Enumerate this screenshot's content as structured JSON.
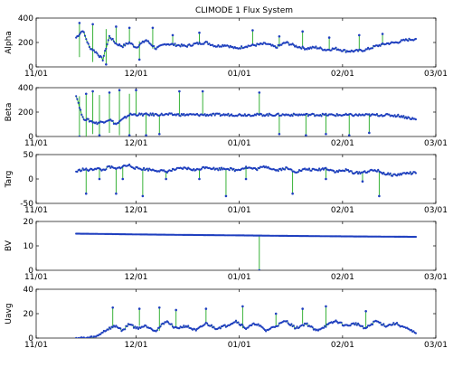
{
  "figure": {
    "title": "CLIMODE 1 Flux System"
  },
  "chart_data": [
    {
      "type": "line",
      "ylabel": "Alpha",
      "xlim": [
        "11/01",
        "03/01"
      ],
      "xticks": [
        "11/01",
        "12/01",
        "01/01",
        "02/01",
        "03/01"
      ],
      "ylim": [
        0,
        400
      ],
      "yticks": [
        0,
        200,
        400
      ],
      "x_start": "11/13",
      "x_end": "02/23",
      "series": [
        {
          "color": "#22aa22",
          "values": []
        },
        {
          "color": "#1f3fbf",
          "values": []
        }
      ],
      "points": [
        [
          "11/13",
          240
        ],
        [
          "11/15",
          300
        ],
        [
          "11/17",
          160
        ],
        [
          "11/19",
          120
        ],
        [
          "11/21",
          60
        ],
        [
          "11/23",
          250
        ],
        [
          "11/25",
          190
        ],
        [
          "11/27",
          170
        ],
        [
          "11/29",
          200
        ],
        [
          "12/01",
          160
        ],
        [
          "12/04",
          220
        ],
        [
          "12/07",
          150
        ],
        [
          "12/10",
          190
        ],
        [
          "12/13",
          180
        ],
        [
          "12/16",
          170
        ],
        [
          "12/19",
          190
        ],
        [
          "12/22",
          200
        ],
        [
          "12/25",
          170
        ],
        [
          "12/28",
          180
        ],
        [
          "12/31",
          150
        ],
        [
          "01/03",
          170
        ],
        [
          "01/06",
          180
        ],
        [
          "01/09",
          190
        ],
        [
          "01/12",
          160
        ],
        [
          "01/15",
          200
        ],
        [
          "01/18",
          170
        ],
        [
          "01/21",
          150
        ],
        [
          "01/24",
          160
        ],
        [
          "01/27",
          140
        ],
        [
          "01/30",
          150
        ],
        [
          "02/02",
          130
        ],
        [
          "02/05",
          130
        ],
        [
          "02/08",
          140
        ],
        [
          "02/11",
          170
        ],
        [
          "02/14",
          190
        ],
        [
          "02/17",
          200
        ],
        [
          "02/20",
          220
        ],
        [
          "02/23",
          230
        ]
      ],
      "spikes": [
        [
          "11/14",
          360,
          80
        ],
        [
          "11/18",
          350,
          40
        ],
        [
          "11/22",
          20,
          310
        ],
        [
          "11/25",
          330,
          190
        ],
        [
          "11/29",
          320,
          200
        ],
        [
          "12/02",
          60,
          210
        ],
        [
          "12/06",
          320,
          150
        ],
        [
          "12/12",
          260,
          180
        ],
        [
          "12/20",
          280,
          190
        ],
        [
          "01/05",
          300,
          180
        ],
        [
          "01/13",
          250,
          170
        ],
        [
          "01/20",
          290,
          160
        ],
        [
          "01/28",
          240,
          140
        ],
        [
          "02/06",
          260,
          130
        ],
        [
          "02/13",
          270,
          180
        ]
      ]
    },
    {
      "type": "line",
      "ylabel": "Beta",
      "xlim": [
        "11/01",
        "03/01"
      ],
      "xticks": [
        "11/01",
        "12/01",
        "01/01",
        "02/01",
        "03/01"
      ],
      "ylim": [
        0,
        400
      ],
      "yticks": [
        0,
        200,
        400
      ],
      "x_start": "11/13",
      "x_end": "02/23",
      "points": [
        [
          "11/13",
          340
        ],
        [
          "11/15",
          150
        ],
        [
          "11/17",
          130
        ],
        [
          "11/19",
          110
        ],
        [
          "11/21",
          120
        ],
        [
          "11/23",
          140
        ],
        [
          "11/25",
          100
        ],
        [
          "11/27",
          140
        ],
        [
          "11/29",
          180
        ],
        [
          "12/01",
          180
        ],
        [
          "12/05",
          180
        ],
        [
          "12/10",
          180
        ],
        [
          "12/15",
          178
        ],
        [
          "12/20",
          178
        ],
        [
          "12/25",
          178
        ],
        [
          "12/31",
          178
        ],
        [
          "01/05",
          178
        ],
        [
          "01/10",
          178
        ],
        [
          "01/15",
          178
        ],
        [
          "01/20",
          178
        ],
        [
          "01/25",
          178
        ],
        [
          "01/30",
          176
        ],
        [
          "02/04",
          176
        ],
        [
          "02/09",
          176
        ],
        [
          "02/14",
          176
        ],
        [
          "02/18",
          170
        ],
        [
          "02/23",
          140
        ]
      ],
      "spikes": [
        [
          "11/14",
          0,
          330
        ],
        [
          "11/16",
          350,
          0
        ],
        [
          "11/18",
          370,
          20
        ],
        [
          "11/20",
          10,
          340
        ],
        [
          "11/23",
          360,
          30
        ],
        [
          "11/26",
          380,
          10
        ],
        [
          "11/29",
          10,
          350
        ],
        [
          "12/01",
          380,
          180
        ],
        [
          "12/04",
          10,
          180
        ],
        [
          "12/08",
          20,
          180
        ],
        [
          "12/14",
          370,
          180
        ],
        [
          "12/21",
          370,
          180
        ],
        [
          "01/07",
          360,
          180
        ],
        [
          "01/13",
          20,
          180
        ],
        [
          "01/21",
          10,
          180
        ],
        [
          "01/27",
          20,
          176
        ],
        [
          "02/03",
          10,
          176
        ],
        [
          "02/09",
          30,
          176
        ]
      ]
    },
    {
      "type": "line",
      "ylabel": "Targ",
      "xlim": [
        "11/01",
        "03/01"
      ],
      "xticks": [
        "11/01",
        "12/01",
        "01/01",
        "02/01",
        "03/01"
      ],
      "ylim": [
        -50,
        50
      ],
      "yticks": [
        -50,
        0,
        50
      ],
      "x_start": "11/13",
      "x_end": "02/23",
      "points": [
        [
          "11/13",
          15
        ],
        [
          "11/15",
          20
        ],
        [
          "11/17",
          18
        ],
        [
          "11/19",
          22
        ],
        [
          "11/21",
          18
        ],
        [
          "11/23",
          25
        ],
        [
          "11/25",
          20
        ],
        [
          "11/27",
          26
        ],
        [
          "11/29",
          28
        ],
        [
          "12/01",
          22
        ],
        [
          "12/04",
          20
        ],
        [
          "12/07",
          18
        ],
        [
          "12/10",
          15
        ],
        [
          "12/13",
          20
        ],
        [
          "12/16",
          22
        ],
        [
          "12/19",
          18
        ],
        [
          "12/22",
          25
        ],
        [
          "12/25",
          20
        ],
        [
          "12/28",
          22
        ],
        [
          "12/31",
          18
        ],
        [
          "01/03",
          24
        ],
        [
          "01/06",
          20
        ],
        [
          "01/09",
          26
        ],
        [
          "01/12",
          18
        ],
        [
          "01/15",
          22
        ],
        [
          "01/18",
          15
        ],
        [
          "01/21",
          20
        ],
        [
          "01/24",
          18
        ],
        [
          "01/27",
          22
        ],
        [
          "01/30",
          15
        ],
        [
          "02/02",
          18
        ],
        [
          "02/05",
          12
        ],
        [
          "02/08",
          15
        ],
        [
          "02/11",
          18
        ],
        [
          "02/14",
          10
        ],
        [
          "02/17",
          8
        ],
        [
          "02/20",
          12
        ],
        [
          "02/23",
          12
        ]
      ],
      "spikes": [
        [
          "11/16",
          -30,
          18
        ],
        [
          "11/20",
          0,
          22
        ],
        [
          "11/25",
          -30,
          20
        ],
        [
          "11/27",
          0,
          26
        ],
        [
          "12/03",
          -35,
          20
        ],
        [
          "12/10",
          0,
          15
        ],
        [
          "12/20",
          0,
          18
        ],
        [
          "12/28",
          -35,
          20
        ],
        [
          "01/03",
          0,
          24
        ],
        [
          "01/17",
          -30,
          15
        ],
        [
          "01/27",
          0,
          22
        ],
        [
          "02/07",
          -5,
          15
        ],
        [
          "02/12",
          -35,
          16
        ]
      ]
    },
    {
      "type": "line",
      "ylabel": "BV",
      "xlim": [
        "11/01",
        "03/01"
      ],
      "xticks": [
        "11/01",
        "12/01",
        "01/01",
        "02/01",
        "03/01"
      ],
      "ylim": [
        0,
        20
      ],
      "yticks": [
        0,
        10,
        20
      ],
      "x_start": "11/13",
      "x_end": "02/23",
      "points": [
        [
          "11/13",
          15
        ],
        [
          "11/20",
          14.9
        ],
        [
          "12/01",
          14.7
        ],
        [
          "12/15",
          14.5
        ],
        [
          "01/01",
          14.3
        ],
        [
          "01/15",
          14.1
        ],
        [
          "02/01",
          13.9
        ],
        [
          "02/23",
          13.7
        ]
      ],
      "spikes": [
        [
          "01/07",
          0,
          14.3
        ]
      ]
    },
    {
      "type": "line",
      "ylabel": "Uavg",
      "xlim": [
        "11/01",
        "03/01"
      ],
      "xticks": [
        "11/01",
        "12/01",
        "01/01",
        "02/01",
        "03/01"
      ],
      "ylim": [
        0,
        40
      ],
      "yticks": [
        0,
        20,
        40
      ],
      "x_start": "11/13",
      "x_end": "02/23",
      "points": [
        [
          "11/13",
          0
        ],
        [
          "11/16",
          0
        ],
        [
          "11/19",
          1
        ],
        [
          "11/21",
          5
        ],
        [
          "11/23",
          8
        ],
        [
          "11/25",
          10
        ],
        [
          "11/27",
          6
        ],
        [
          "11/29",
          12
        ],
        [
          "12/01",
          8
        ],
        [
          "12/04",
          10
        ],
        [
          "12/07",
          6
        ],
        [
          "12/10",
          14
        ],
        [
          "12/13",
          8
        ],
        [
          "12/16",
          10
        ],
        [
          "12/19",
          6
        ],
        [
          "12/22",
          12
        ],
        [
          "12/25",
          8
        ],
        [
          "12/28",
          10
        ],
        [
          "12/31",
          14
        ],
        [
          "01/03",
          8
        ],
        [
          "01/06",
          12
        ],
        [
          "01/09",
          6
        ],
        [
          "01/12",
          10
        ],
        [
          "01/15",
          14
        ],
        [
          "01/18",
          8
        ],
        [
          "01/21",
          12
        ],
        [
          "01/24",
          6
        ],
        [
          "01/27",
          10
        ],
        [
          "01/30",
          14
        ],
        [
          "02/02",
          10
        ],
        [
          "02/05",
          12
        ],
        [
          "02/08",
          8
        ],
        [
          "02/11",
          14
        ],
        [
          "02/14",
          10
        ],
        [
          "02/17",
          12
        ],
        [
          "02/20",
          8
        ],
        [
          "02/23",
          4
        ]
      ],
      "spikes": [
        [
          "11/24",
          25,
          8
        ],
        [
          "12/02",
          24,
          10
        ],
        [
          "12/08",
          25,
          6
        ],
        [
          "12/13",
          23,
          8
        ],
        [
          "12/22",
          24,
          12
        ],
        [
          "01/02",
          26,
          8
        ],
        [
          "01/12",
          20,
          10
        ],
        [
          "01/20",
          24,
          12
        ],
        [
          "01/27",
          26,
          10
        ],
        [
          "02/08",
          22,
          8
        ]
      ]
    }
  ]
}
